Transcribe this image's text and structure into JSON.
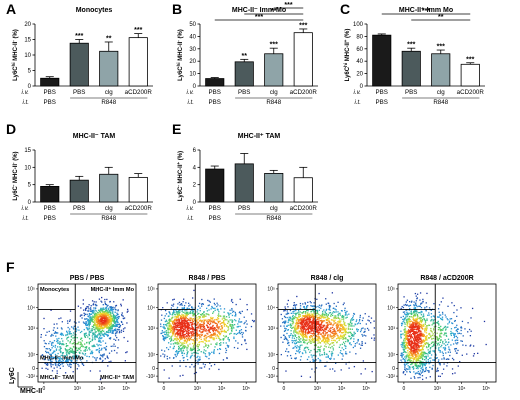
{
  "colors": {
    "bar_fills": [
      "#1a1a1a",
      "#4c5a5c",
      "#8fa4a8",
      "#ffffff"
    ],
    "density_low": "#1e2f9e",
    "density_high": "#e83018"
  },
  "chart_data": [
    {
      "type": "bar",
      "panel": "A",
      "title": "Monocytes",
      "ylabel": "Ly6C^hi MHC-II^- (%)",
      "categories": [
        "PBS/PBS",
        "R848/PBS",
        "R848/clg",
        "R848/aCD200R"
      ],
      "values": [
        2.5,
        13.8,
        11.2,
        15.6
      ],
      "errors": [
        0.5,
        1.2,
        3.0,
        1.3
      ],
      "ylim": [
        0,
        20
      ],
      "yticks": [
        "0",
        "5",
        "10",
        "15",
        "20"
      ],
      "significance": [
        "",
        "***",
        "**",
        "***"
      ],
      "brackets": [],
      "row_iv": [
        "i.v.",
        "PBS",
        "PBS",
        "clg",
        "aCD200R"
      ],
      "row_it": [
        "i.t.",
        "PBS",
        "R848"
      ]
    },
    {
      "type": "bar",
      "panel": "B",
      "title": "MHC-II⁻ Imm Mo",
      "ylabel": "Ly6C^hi MHC-II^- (%)",
      "categories": [
        "PBS/PBS",
        "R848/PBS",
        "R848/clg",
        "R848/aCD200R"
      ],
      "values": [
        6.0,
        19.5,
        26.0,
        43.0
      ],
      "errors": [
        0.8,
        2.0,
        4.5,
        3.0
      ],
      "ylim": [
        0,
        50
      ],
      "yticks": [
        "0",
        "10",
        "20",
        "30",
        "40",
        "50"
      ],
      "significance": [
        "",
        "**",
        "***",
        "***"
      ],
      "brackets": [
        {
          "from": 0,
          "to": 3,
          "label": "***"
        },
        {
          "from": 1,
          "to": 3,
          "label": "**"
        },
        {
          "from": 2,
          "to": 3,
          "label": "***"
        }
      ],
      "row_iv": [
        "i.v.",
        "PBS",
        "PBS",
        "clg",
        "aCD200R"
      ],
      "row_it": [
        "i.t.",
        "PBS",
        "R848"
      ]
    },
    {
      "type": "bar",
      "panel": "C",
      "title": "MHC-II⁺ Imm Mo",
      "ylabel": "Ly6C^hi MHC-II^+ (%)",
      "categories": [
        "PBS/PBS",
        "R848/PBS",
        "R848/clg",
        "R848/aCD200R"
      ],
      "values": [
        82,
        56,
        52,
        35
      ],
      "errors": [
        2.0,
        5.0,
        6.0,
        2.5
      ],
      "ylim": [
        0,
        100
      ],
      "yticks": [
        "0",
        "20",
        "40",
        "60",
        "80",
        "100"
      ],
      "significance": [
        "",
        "***",
        "***",
        "***"
      ],
      "brackets": [
        {
          "from": 1,
          "to": 3,
          "label": "**"
        },
        {
          "from": 0,
          "to": 3,
          "label": "***"
        }
      ],
      "row_iv": [
        "i.v.",
        "PBS",
        "PBS",
        "clg",
        "aCD200R"
      ],
      "row_it": [
        "i.t.",
        "PBS",
        "R848"
      ]
    },
    {
      "type": "bar",
      "panel": "D",
      "title": "MHC-II⁻ TAM",
      "ylabel": "Ly6C^- MHC-II^- (%)",
      "categories": [
        "PBS/PBS",
        "R848/PBS",
        "R848/clg",
        "R848/aCD200R"
      ],
      "values": [
        4.5,
        6.3,
        8.0,
        7.1
      ],
      "errors": [
        0.5,
        1.1,
        2.0,
        1.1
      ],
      "ylim": [
        0,
        15
      ],
      "yticks": [
        "0",
        "5",
        "10",
        "15"
      ],
      "significance": [
        "",
        "",
        "",
        ""
      ],
      "brackets": [],
      "row_iv": [
        "i.v.",
        "PBS",
        "PBS",
        "clg",
        "aCD200R"
      ],
      "row_it": [
        "i.t.",
        "PBS",
        "R848"
      ]
    },
    {
      "type": "bar",
      "panel": "E",
      "title": "MHC-II⁺ TAM",
      "ylabel": "Ly6C^- MHC-II^+ (%)",
      "categories": [
        "PBS/PBS",
        "R848/PBS",
        "R848/clg",
        "R848/aCD200R"
      ],
      "values": [
        3.8,
        4.4,
        3.3,
        2.8
      ],
      "errors": [
        0.35,
        1.2,
        0.35,
        1.2
      ],
      "ylim": [
        0,
        6
      ],
      "yticks": [
        "0",
        "2",
        "4",
        "6"
      ],
      "significance": [
        "",
        "",
        "",
        ""
      ],
      "brackets": [],
      "row_iv": [
        "i.v.",
        "PBS",
        "PBS",
        "clg",
        "aCD200R"
      ],
      "row_it": [
        "i.t.",
        "PBS",
        "R848"
      ]
    }
  ],
  "panel_f": {
    "label": "F",
    "plots": [
      {
        "title": "PBS / PBS",
        "profile": "pbs"
      },
      {
        "title": "R848 / PBS",
        "profile": "r848"
      },
      {
        "title": "R848 / clg",
        "profile": "clg"
      },
      {
        "title": "R848 / aCD200R",
        "profile": "cd200r"
      }
    ],
    "gates": {
      "top_left": "Monocytes",
      "top_right": "MHC-II⁺ Imm Mo",
      "mid_left": "MHC-II⁻ Imm Mo",
      "bottom_left": "MHC-II⁻ TAM",
      "bottom_right": "MHC-II⁺ TAM"
    },
    "xlabel": "MHC-II",
    "ylabel": "Ly6C",
    "x_ticks": [
      "0",
      "10³",
      "10⁴",
      "10⁵"
    ],
    "y_ticks": [
      "-10²",
      "0",
      "10²",
      "10³",
      "10⁴",
      "10⁵"
    ]
  }
}
